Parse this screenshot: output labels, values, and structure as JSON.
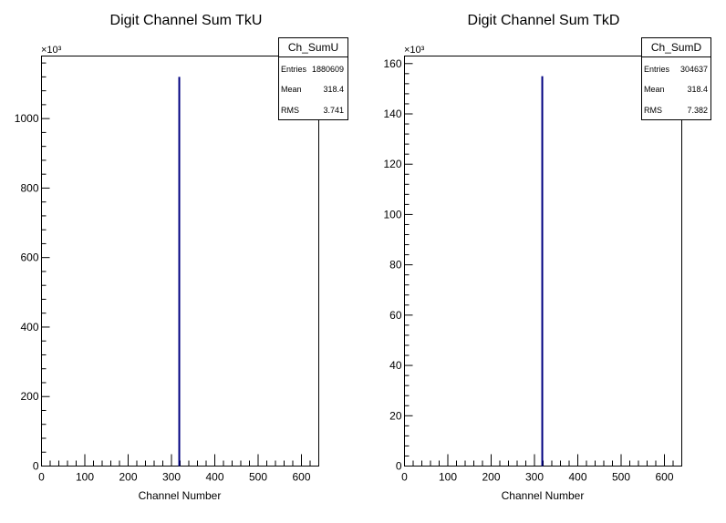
{
  "chart_data": [
    {
      "type": "bar",
      "title": "Digit Channel Sum TkU",
      "xlabel": "Channel Number",
      "ylabel": "",
      "xlim": [
        0,
        640
      ],
      "ylim": [
        0,
        1180
      ],
      "multiplier": "×10³",
      "x_ticks": [
        "0",
        "100",
        "200",
        "300",
        "400",
        "500",
        "600"
      ],
      "y_ticks": [
        "0",
        "200",
        "400",
        "600",
        "800",
        "1000"
      ],
      "bins": [
        {
          "x": 318,
          "value": 1120
        }
      ],
      "line_color": "#000080",
      "stats": {
        "name": "Ch_SumU",
        "rows": [
          {
            "label": "Entries",
            "value": "1880609"
          },
          {
            "label": "Mean",
            "value": "318.4"
          },
          {
            "label": "RMS",
            "value": "3.741"
          }
        ]
      }
    },
    {
      "type": "bar",
      "title": "Digit Channel Sum TkD",
      "xlabel": "Channel Number",
      "ylabel": "",
      "xlim": [
        0,
        640
      ],
      "ylim": [
        0,
        163
      ],
      "multiplier": "×10³",
      "x_ticks": [
        "0",
        "100",
        "200",
        "300",
        "400",
        "500",
        "600"
      ],
      "y_ticks": [
        "0",
        "20",
        "40",
        "60",
        "80",
        "100",
        "120",
        "140",
        "160"
      ],
      "bins": [
        {
          "x": 318,
          "value": 155
        }
      ],
      "line_color": "#000080",
      "stats": {
        "name": "Ch_SumD",
        "rows": [
          {
            "label": "Entries",
            "value": "304637"
          },
          {
            "label": "Mean",
            "value": "318.4"
          },
          {
            "label": "RMS",
            "value": "7.382"
          }
        ]
      }
    }
  ]
}
